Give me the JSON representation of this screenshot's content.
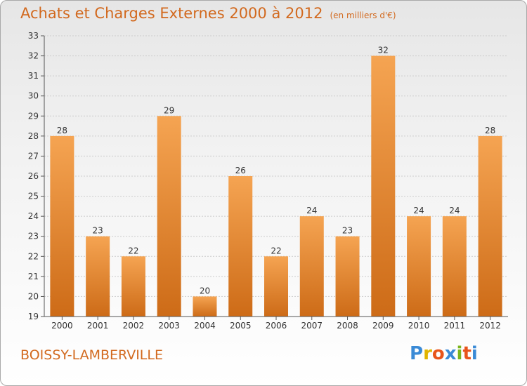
{
  "header": {
    "title": "Achats et Charges Externes 2000 à 2012",
    "unit": "(en milliers d'€)"
  },
  "footer": {
    "place": "BOISSY-LAMBERVILLE",
    "logo": "Proxiti",
    "logo_colors": [
      "#3a8ad6",
      "#e0b400",
      "#e8541b",
      "#3a8ad6",
      "#7ab51d",
      "#e8541b",
      "#3a8ad6"
    ]
  },
  "colors": {
    "title": "#d2691e",
    "bar_top": "#f5a452",
    "bar_bottom": "#cd6b17",
    "axis": "#555555",
    "grid": "#cccccc"
  },
  "chart_data": {
    "type": "bar",
    "title": "Achats et Charges Externes 2000 à 2012",
    "subtitle": "(en milliers d'€)",
    "categories": [
      "2000",
      "2001",
      "2002",
      "2003",
      "2004",
      "2005",
      "2006",
      "2007",
      "2008",
      "2009",
      "2010",
      "2011",
      "2012"
    ],
    "values": [
      28,
      23,
      22,
      29,
      20,
      26,
      22,
      24,
      23,
      32,
      24,
      24,
      28
    ],
    "ylim": [
      19,
      33
    ],
    "yticks": [
      19,
      20,
      21,
      22,
      23,
      24,
      25,
      26,
      27,
      28,
      29,
      30,
      31,
      32,
      33
    ],
    "grid": true,
    "data_labels": true
  }
}
